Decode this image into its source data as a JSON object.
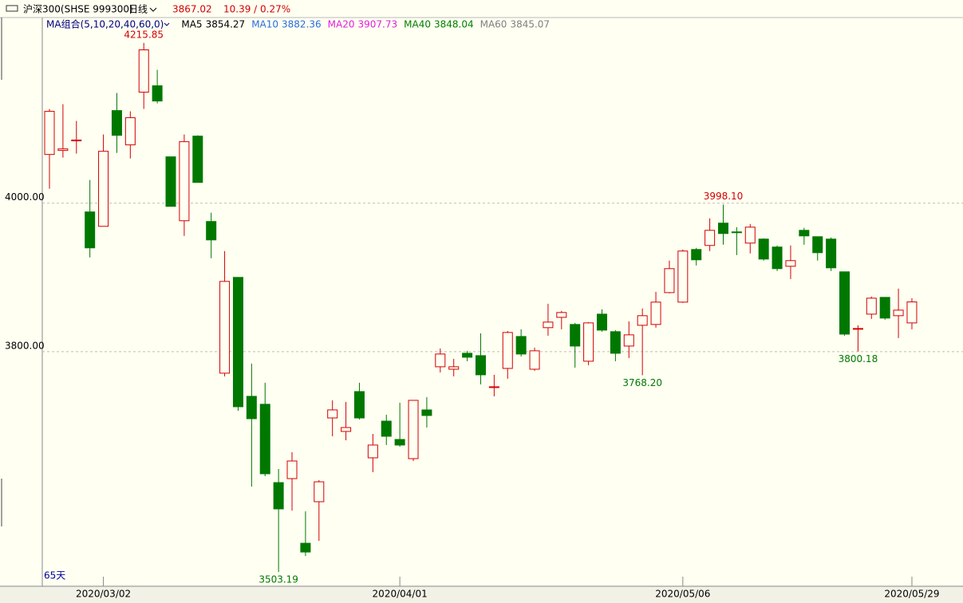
{
  "header": {
    "symbol": "沪深300(SHSE 999300)",
    "period": "日线",
    "price": 3867.02,
    "change": "10.39 / 0.27%"
  },
  "ma_group": "MA组合(5,10,20,40,60,0)",
  "ma": [
    {
      "name": "MA5",
      "value": 3854.27,
      "color": "#000000"
    },
    {
      "name": "MA10",
      "value": 3882.36,
      "color": "#2a6ee0"
    },
    {
      "name": "MA20",
      "value": 3907.73,
      "color": "#e020e0"
    },
    {
      "name": "MA40",
      "value": 3848.04,
      "color": "#008000"
    },
    {
      "name": "MA60",
      "value": 3845.07,
      "color": "#808080"
    }
  ],
  "days_label": "65天",
  "chart_data": {
    "type": "candlestick",
    "categories": [
      null,
      null,
      null,
      null,
      "2020/03/02",
      null,
      null,
      null,
      null,
      null,
      null,
      null,
      null,
      null,
      null,
      null,
      null,
      null,
      null,
      null,
      null,
      null,
      null,
      null,
      null,
      null,
      "2020/04/01",
      null,
      null,
      null,
      null,
      null,
      null,
      null,
      null,
      null,
      null,
      null,
      null,
      null,
      null,
      null,
      null,
      null,
      null,
      null,
      null,
      "2020/05/06",
      null,
      null,
      null,
      null,
      null,
      null,
      null,
      null,
      null,
      null,
      null,
      null,
      null,
      null,
      null,
      null,
      "2020/05/29"
    ],
    "open": [
      4065.6,
      4071.0,
      4083.9,
      3988.2,
      3968.8,
      4124.7,
      4078.5,
      4149.5,
      4158.1,
      4062.4,
      3976.3,
      4090.3,
      3975.3,
      3771.0,
      3900.0,
      3739.8,
      3729.1,
      3623.6,
      3629.0,
      3541.9,
      3597.9,
      3710.7,
      3692.5,
      3746.2,
      3657.0,
      3706.4,
      3681.7,
      3655.9,
      3721.5,
      3779.6,
      3776.3,
      3797.8,
      3794.6,
      3751.6,
      3777.4,
      3820.4,
      3776.3,
      3832.3,
      3846.2,
      3836.6,
      3787.1,
      3850.5,
      3826.9,
      3807.5,
      3835.5,
      3836.6,
      3879.5,
      3866.7,
      3937.6,
      3943.0,
      3973.1,
      3961.3,
      3946.2,
      3951.6,
      3940.9,
      3915.0,
      3963.4,
      3954.8,
      3951.6,
      3907.5,
      3830.1,
      3850.5,
      3873.1,
      3848.4,
      3838.7
    ],
    "high": [
      4126.9,
      4133.3,
      4110.8,
      4031.2,
      4092.5,
      4148.4,
      4123.7,
      4215.85,
      4179.6,
      4062.4,
      4092.5,
      4091.4,
      3987.1,
      3935.5,
      3900.0,
      3783.9,
      3758.1,
      3641.9,
      3664.5,
      3584.9,
      3626.9,
      3734.4,
      3732.3,
      3758.1,
      3689.2,
      3715.0,
      3731.2,
      3734.4,
      3738.7,
      3804.3,
      3790.3,
      3801.1,
      3824.7,
      3768.8,
      3827.9,
      3830.1,
      3805.4,
      3864.5,
      3854.9,
      3838.7,
      3839.8,
      3857.0,
      3829.0,
      3840.9,
      3858.1,
      3880.6,
      3922.6,
      3937.6,
      3939.8,
      3979.6,
      3998.1,
      3967.7,
      3972.0,
      3952.7,
      3943.0,
      3943.0,
      3966.7,
      3954.8,
      3953.8,
      3907.5,
      3835.5,
      3874.2,
      3873.1,
      3884.9,
      3872.0
    ],
    "low": [
      4019.4,
      4061.3,
      4066.7,
      3926.9,
      3968.8,
      4067.7,
      4060.2,
      4126.9,
      4134.4,
      3995.7,
      3955.9,
      4027.9,
      3925.8,
      3766.7,
      3720.4,
      3618.3,
      3632.2,
      3503.19,
      3586.0,
      3524.7,
      3545.1,
      3686.0,
      3680.6,
      3708.6,
      3637.6,
      3674.2,
      3672.0,
      3652.7,
      3697.8,
      3772.0,
      3766.7,
      3787.1,
      3755.9,
      3739.8,
      3763.4,
      3793.5,
      3774.2,
      3821.5,
      3830.1,
      3778.5,
      3781.7,
      3826.9,
      3787.1,
      3791.4,
      3768.2,
      3832.3,
      3878.5,
      3865.6,
      3916.1,
      3935.5,
      3944.1,
      3930.1,
      3932.3,
      3922.6,
      3908.6,
      3897.8,
      3944.1,
      3922.6,
      3908.6,
      3821.5,
      3800.18,
      3844.1,
      3843.0,
      3818.3,
      3830.1
    ],
    "close": [
      4123.7,
      4073.1,
      4085.0,
      3939.8,
      4069.9,
      4091.4,
      4115.1,
      4206.5,
      4137.6,
      3995.7,
      4082.8,
      4027.9,
      3950.5,
      3894.6,
      3725.8,
      3709.7,
      3635.5,
      3588.2,
      3652.7,
      3530.1,
      3624.7,
      3721.5,
      3697.8,
      3710.7,
      3674.2,
      3686.0,
      3674.2,
      3734.4,
      3714.0,
      3796.8,
      3779.6,
      3792.5,
      3768.8,
      3752.7,
      3825.8,
      3796.8,
      3801.1,
      3839.8,
      3852.7,
      3807.5,
      3838.7,
      3829.0,
      3797.8,
      3822.6,
      3848.4,
      3866.7,
      3911.8,
      3935.5,
      3923.7,
      3963.4,
      3959.1,
      3960.2,
      3967.7,
      3924.7,
      3911.8,
      3922.6,
      3955.9,
      3933.3,
      3912.9,
      3823.6,
      3831.2,
      3872.0,
      3845.2,
      3855.9,
      3867.02
    ],
    "up_color": "#d40000",
    "down_color": "#007800",
    "annotations": [
      {
        "value": 4215.85,
        "label": "4215.85"
      },
      {
        "value": 3503.19,
        "label": "3503.19"
      },
      {
        "value": 3998.1,
        "label": "3998.10"
      },
      {
        "value": 3768.2,
        "label": "3768.20"
      },
      {
        "value": 3800.18,
        "label": "3800.18"
      }
    ],
    "ylim": [
      3484,
      4250
    ],
    "yticks": [
      {
        "value": 4000,
        "label": "4000.00"
      },
      {
        "value": 3800,
        "label": "3800.00"
      }
    ],
    "grid": true
  }
}
